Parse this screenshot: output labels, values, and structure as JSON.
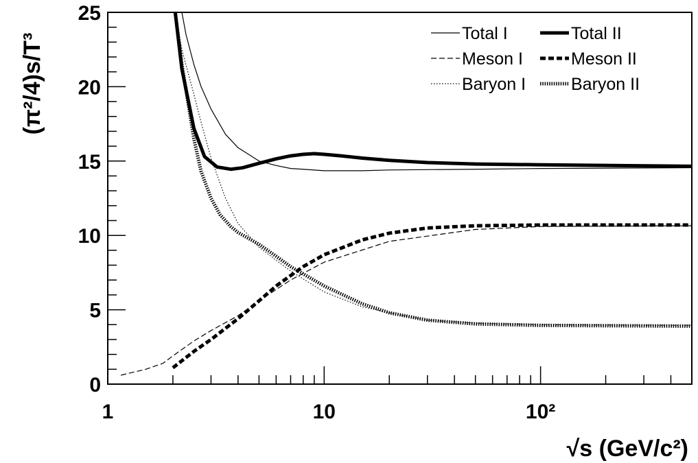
{
  "chart_data": {
    "type": "line",
    "xlabel": "√s (GeV/c²)",
    "ylabel": "(π²/4)s/T³",
    "x_scale": "log",
    "xlim": [
      1,
      500
    ],
    "ylim": [
      0,
      25
    ],
    "x_tick_labels": [
      "1",
      "10",
      "10²"
    ],
    "y_tick_labels": [
      "0",
      "5",
      "10",
      "15",
      "20",
      "25"
    ],
    "y_ticks": [
      0,
      5,
      10,
      15,
      20,
      25
    ],
    "grid": false,
    "legend_position": "top-right",
    "series": [
      {
        "name": "Total I",
        "style": "thin-solid",
        "x": [
          2.2,
          2.3,
          2.5,
          2.7,
          3,
          3.5,
          4,
          5,
          6,
          7,
          8,
          10,
          15,
          20,
          50,
          100,
          500
        ],
        "y": [
          25,
          23.5,
          21.5,
          20,
          18.5,
          16.8,
          15.9,
          15.0,
          14.7,
          14.5,
          14.45,
          14.35,
          14.35,
          14.4,
          14.45,
          14.5,
          14.55
        ]
      },
      {
        "name": "Meson I",
        "style": "thin-dashed",
        "x": [
          1.15,
          1.5,
          1.8,
          2,
          2.5,
          3,
          4,
          5,
          7,
          10,
          20,
          50,
          100,
          500
        ],
        "y": [
          0.6,
          1.0,
          1.4,
          1.9,
          2.9,
          3.6,
          4.6,
          5.6,
          7.0,
          8.2,
          9.6,
          10.4,
          10.6,
          10.65
        ]
      },
      {
        "name": "Baryon I",
        "style": "thin-dotted",
        "x": [
          2.05,
          2.2,
          2.5,
          2.7,
          3,
          3.5,
          4,
          5,
          7,
          10,
          15,
          20,
          30,
          50,
          100,
          500
        ],
        "y": [
          25,
          22.5,
          19.5,
          17.6,
          15.2,
          12.5,
          10.8,
          9.2,
          7.6,
          6.2,
          5.2,
          4.8,
          4.3,
          4.1,
          4.0,
          3.95
        ]
      },
      {
        "name": "Total II",
        "style": "thick-solid",
        "x": [
          2.05,
          2.2,
          2.5,
          2.8,
          3.2,
          3.7,
          4.2,
          5,
          6,
          7,
          8,
          9,
          10,
          12,
          15,
          20,
          30,
          50,
          100,
          500
        ],
        "y": [
          25,
          21.2,
          17.2,
          15.3,
          14.6,
          14.45,
          14.55,
          14.85,
          15.15,
          15.35,
          15.45,
          15.5,
          15.45,
          15.35,
          15.2,
          15.05,
          14.9,
          14.8,
          14.75,
          14.65
        ]
      },
      {
        "name": "Meson II",
        "style": "thick-dashed",
        "x": [
          2,
          2.5,
          3,
          4,
          5,
          6,
          7,
          8,
          10,
          15,
          20,
          30,
          50,
          100,
          500
        ],
        "y": [
          1.1,
          2.2,
          3.0,
          4.4,
          5.6,
          6.6,
          7.3,
          7.9,
          8.7,
          9.7,
          10.15,
          10.5,
          10.65,
          10.7,
          10.7
        ]
      },
      {
        "name": "Baryon II",
        "style": "thick-dotted",
        "x": [
          2.05,
          2.2,
          2.5,
          2.7,
          3,
          3.3,
          3.7,
          4,
          5,
          6,
          7,
          10,
          15,
          20,
          30,
          50,
          100,
          500
        ],
        "y": [
          25,
          21.5,
          16.5,
          14.3,
          12.5,
          11.4,
          10.6,
          10.2,
          9.4,
          8.6,
          7.9,
          6.6,
          5.4,
          4.8,
          4.3,
          4.05,
          3.95,
          3.9
        ]
      }
    ]
  }
}
